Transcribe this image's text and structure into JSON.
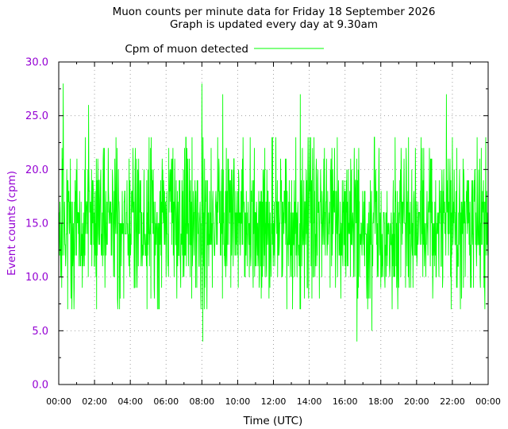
{
  "chart_data": {
    "type": "line",
    "title": "Muon counts per minute data for Friday 18 September 2026",
    "subtitle": "Graph is updated every day at 9.30am",
    "xlabel": "Time (UTC)",
    "ylabel": "Event counts (cpm)",
    "ylim": [
      0,
      30
    ],
    "xlim_hours": [
      0,
      24
    ],
    "grid": true,
    "legend_placement": "top",
    "series_color": "#00ff00",
    "axis_label_color": "#9400d3",
    "yticks": [
      "0.0",
      "5.0",
      "10.0",
      "15.0",
      "20.0",
      "25.0",
      "30.0"
    ],
    "xticks": [
      "00:00",
      "02:00",
      "04:00",
      "06:00",
      "08:00",
      "10:00",
      "12:00",
      "14:00",
      "16:00",
      "18:00",
      "20:00",
      "22:00",
      "00:00"
    ],
    "series": [
      {
        "name": "Cpm of muon detected",
        "sampling": "one value per minute, 1440 points",
        "mean_cpm": 15,
        "typical_range": [
          9,
          22
        ],
        "spikes": [
          {
            "time": "00:15",
            "value": 28
          },
          {
            "time": "01:40",
            "value": 26
          },
          {
            "time": "08:00",
            "value": 28
          },
          {
            "time": "08:03",
            "value": 4
          },
          {
            "time": "09:10",
            "value": 27
          },
          {
            "time": "13:30",
            "value": 27
          },
          {
            "time": "16:40",
            "value": 4
          },
          {
            "time": "17:30",
            "value": 5
          },
          {
            "time": "21:40",
            "value": 27
          }
        ]
      }
    ]
  }
}
